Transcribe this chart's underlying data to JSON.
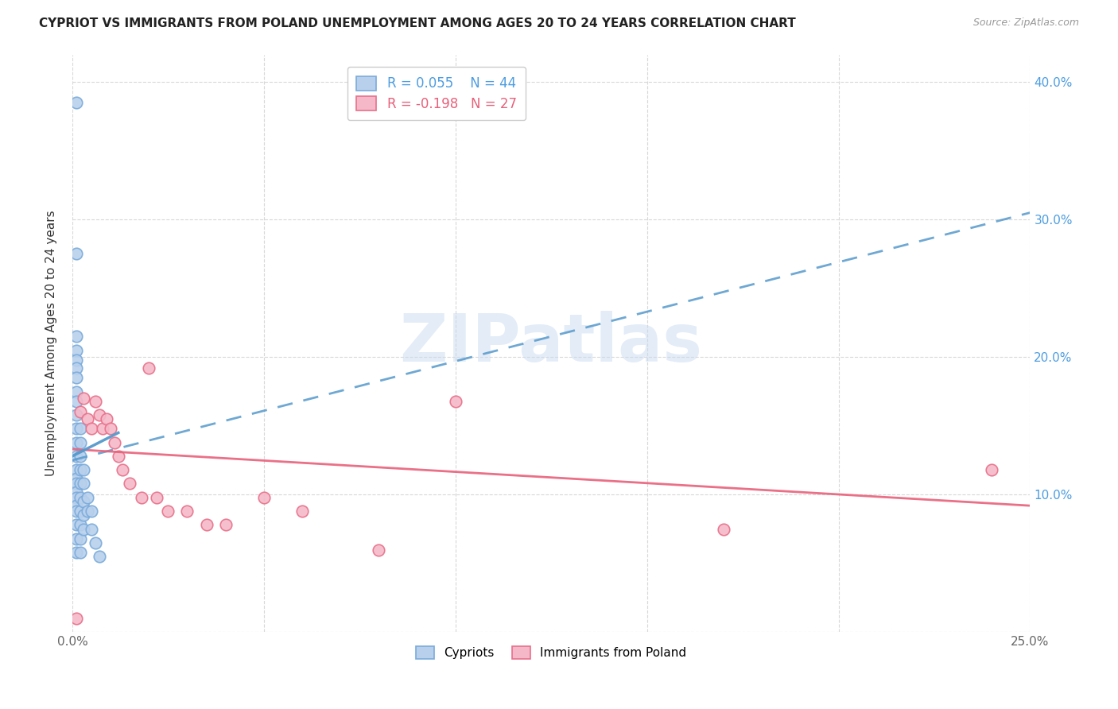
{
  "title": "CYPRIOT VS IMMIGRANTS FROM POLAND UNEMPLOYMENT AMONG AGES 20 TO 24 YEARS CORRELATION CHART",
  "source": "Source: ZipAtlas.com",
  "ylabel": "Unemployment Among Ages 20 to 24 years",
  "xlim": [
    0.0,
    0.25
  ],
  "ylim": [
    0.0,
    0.42
  ],
  "xticks": [
    0.0,
    0.05,
    0.1,
    0.15,
    0.2,
    0.25
  ],
  "yticks": [
    0.0,
    0.1,
    0.2,
    0.3,
    0.4
  ],
  "xtick_labels": [
    "0.0%",
    "",
    "",
    "",
    "",
    "25.0%"
  ],
  "ytick_labels_right": [
    "",
    "10.0%",
    "20.0%",
    "30.0%",
    "40.0%"
  ],
  "background_color": "#ffffff",
  "grid_color": "#d8d8d8",
  "watermark_text": "ZIPatlas",
  "cypriot_color": "#b8d0ec",
  "cypriot_edge_color": "#7aabdb",
  "poland_color": "#f5b8c8",
  "poland_edge_color": "#e8708a",
  "trendline_cypriot_color": "#5599cc",
  "trendline_poland_color": "#e8607a",
  "legend_r_cypriot": "0.055",
  "legend_n_cypriot": "44",
  "legend_r_poland": "-0.198",
  "legend_n_poland": "27",
  "cypriot_label": "Cypriots",
  "poland_label": "Immigrants from Poland",
  "cypriot_x": [
    0.001,
    0.001,
    0.001,
    0.001,
    0.001,
    0.001,
    0.001,
    0.001,
    0.001,
    0.001,
    0.001,
    0.001,
    0.001,
    0.001,
    0.001,
    0.001,
    0.001,
    0.001,
    0.001,
    0.001,
    0.001,
    0.001,
    0.001,
    0.002,
    0.002,
    0.002,
    0.002,
    0.002,
    0.002,
    0.002,
    0.002,
    0.002,
    0.002,
    0.003,
    0.003,
    0.003,
    0.003,
    0.003,
    0.004,
    0.004,
    0.005,
    0.005,
    0.006,
    0.007
  ],
  "cypriot_y": [
    0.385,
    0.275,
    0.215,
    0.205,
    0.198,
    0.192,
    0.185,
    0.175,
    0.168,
    0.158,
    0.148,
    0.138,
    0.128,
    0.118,
    0.112,
    0.108,
    0.102,
    0.098,
    0.092,
    0.088,
    0.078,
    0.068,
    0.058,
    0.148,
    0.138,
    0.128,
    0.118,
    0.108,
    0.098,
    0.088,
    0.078,
    0.068,
    0.058,
    0.118,
    0.108,
    0.095,
    0.085,
    0.075,
    0.098,
    0.088,
    0.088,
    0.075,
    0.065,
    0.055
  ],
  "poland_x": [
    0.001,
    0.002,
    0.003,
    0.004,
    0.005,
    0.006,
    0.007,
    0.008,
    0.009,
    0.01,
    0.011,
    0.012,
    0.013,
    0.015,
    0.018,
    0.02,
    0.022,
    0.025,
    0.03,
    0.035,
    0.04,
    0.05,
    0.06,
    0.08,
    0.1,
    0.17,
    0.24
  ],
  "poland_y": [
    0.01,
    0.16,
    0.17,
    0.155,
    0.148,
    0.168,
    0.158,
    0.148,
    0.155,
    0.148,
    0.138,
    0.128,
    0.118,
    0.108,
    0.098,
    0.192,
    0.098,
    0.088,
    0.088,
    0.078,
    0.078,
    0.098,
    0.088,
    0.06,
    0.168,
    0.075,
    0.118
  ],
  "marker_size": 110
}
